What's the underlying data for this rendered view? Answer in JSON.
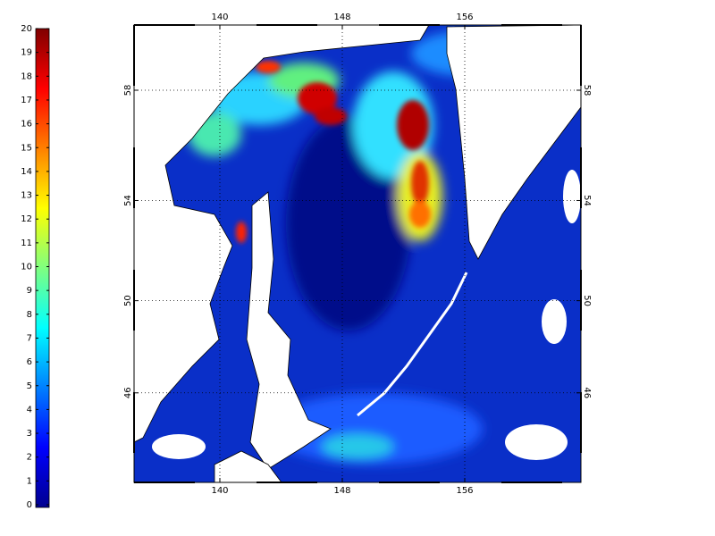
{
  "colorbar": {
    "ticks": [
      0,
      1,
      2,
      3,
      4,
      5,
      6,
      7,
      8,
      9,
      10,
      11,
      12,
      13,
      14,
      15,
      16,
      17,
      18,
      19,
      20
    ]
  },
  "map": {
    "lon_ticks": [
      140,
      148,
      156
    ],
    "lat_ticks": [
      46,
      50,
      54,
      58
    ]
  }
}
